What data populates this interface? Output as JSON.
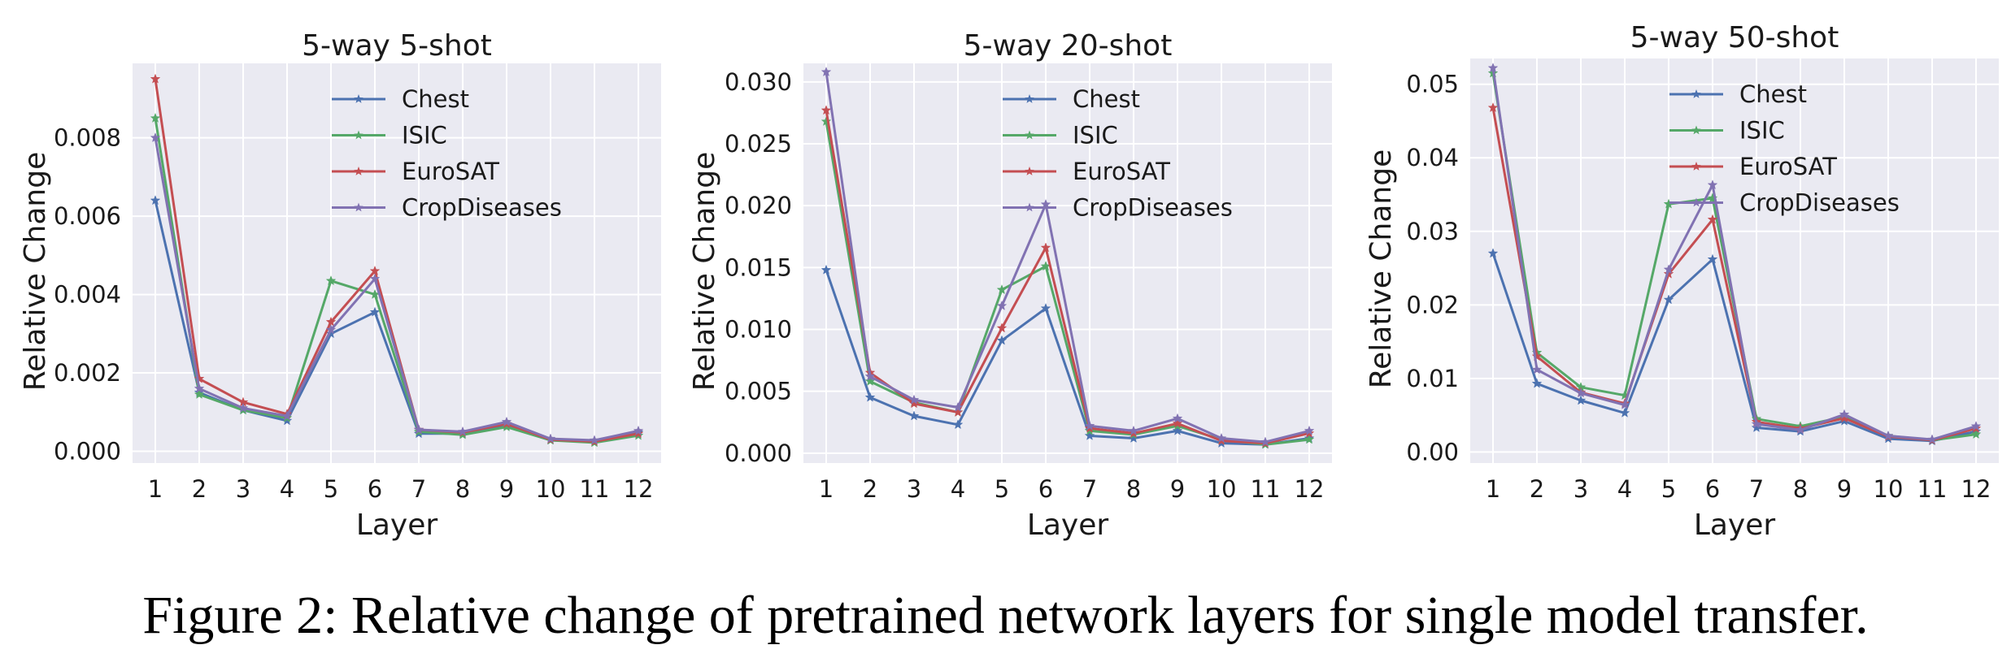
{
  "caption": "Figure 2: Relative change of pretrained network layers for single model transfer.",
  "colors": {
    "plot_background": "#eaeaf2",
    "grid": "#ffffff",
    "Chest": "#4c72b0",
    "ISIC": "#55a868",
    "EuroSAT": "#c44e52",
    "CropDiseases": "#8172b2"
  },
  "chart_data": [
    {
      "type": "line",
      "title": "5-way 5-shot",
      "xlabel": "Layer",
      "ylabel": "Relative Change",
      "x": [
        1,
        2,
        3,
        4,
        5,
        6,
        7,
        8,
        9,
        10,
        11,
        12
      ],
      "yticks": [
        "0.000",
        "0.002",
        "0.004",
        "0.006",
        "0.008"
      ],
      "ylim": [
        -0.0003,
        0.0099
      ],
      "grid": true,
      "legend": "top-right",
      "marker": "star",
      "series": [
        {
          "name": "Chest",
          "values": [
            0.0064,
            0.0015,
            0.00105,
            0.00078,
            0.003,
            0.00355,
            0.00045,
            0.00045,
            0.00065,
            0.00028,
            0.00025,
            0.00048
          ]
        },
        {
          "name": "ISIC",
          "values": [
            0.0085,
            0.00145,
            0.00105,
            0.00085,
            0.00435,
            0.004,
            0.0005,
            0.00042,
            0.00062,
            0.00028,
            0.00022,
            0.0004
          ]
        },
        {
          "name": "EuroSAT",
          "values": [
            0.0095,
            0.00185,
            0.00125,
            0.00095,
            0.0033,
            0.0046,
            0.00055,
            0.00048,
            0.0007,
            0.0003,
            0.00025,
            0.00045
          ]
        },
        {
          "name": "CropDiseases",
          "values": [
            0.008,
            0.0016,
            0.0011,
            0.0009,
            0.0031,
            0.0044,
            0.00055,
            0.0005,
            0.00075,
            0.00032,
            0.00028,
            0.00052
          ]
        }
      ]
    },
    {
      "type": "line",
      "title": "5-way 20-shot",
      "xlabel": "Layer",
      "ylabel": "Relative Change",
      "x": [
        1,
        2,
        3,
        4,
        5,
        6,
        7,
        8,
        9,
        10,
        11,
        12
      ],
      "yticks": [
        "0.000",
        "0.005",
        "0.010",
        "0.015",
        "0.020",
        "0.025",
        "0.030"
      ],
      "ylim": [
        -0.0008,
        0.0315
      ],
      "grid": true,
      "legend": "top-right",
      "marker": "star",
      "series": [
        {
          "name": "Chest",
          "values": [
            0.0148,
            0.0045,
            0.003,
            0.0023,
            0.0091,
            0.0117,
            0.0014,
            0.0012,
            0.0018,
            0.0008,
            0.0007,
            0.0012
          ]
        },
        {
          "name": "ISIC",
          "values": [
            0.0268,
            0.0058,
            0.0041,
            0.0033,
            0.0132,
            0.0151,
            0.0018,
            0.0015,
            0.0022,
            0.0011,
            0.0007,
            0.0011
          ]
        },
        {
          "name": "EuroSAT",
          "values": [
            0.0277,
            0.0065,
            0.004,
            0.0033,
            0.0101,
            0.0166,
            0.002,
            0.0016,
            0.0024,
            0.001,
            0.0008,
            0.0016
          ]
        },
        {
          "name": "CropDiseases",
          "values": [
            0.0308,
            0.0062,
            0.0043,
            0.0037,
            0.0119,
            0.0201,
            0.0022,
            0.0018,
            0.0028,
            0.0012,
            0.0009,
            0.0018
          ]
        }
      ]
    },
    {
      "type": "line",
      "title": "5-way 50-shot",
      "xlabel": "Layer",
      "ylabel": "Relative Change",
      "x": [
        1,
        2,
        3,
        4,
        5,
        6,
        7,
        8,
        9,
        10,
        11,
        12
      ],
      "yticks": [
        "0.00",
        "0.01",
        "0.02",
        "0.03",
        "0.04",
        "0.05"
      ],
      "ylim": [
        -0.0015,
        0.0535
      ],
      "grid": true,
      "legend": "top-right",
      "marker": "star",
      "series": [
        {
          "name": "Chest",
          "values": [
            0.027,
            0.0093,
            0.007,
            0.0053,
            0.0207,
            0.0262,
            0.0033,
            0.0028,
            0.0042,
            0.0018,
            0.0015,
            0.0028
          ]
        },
        {
          "name": "ISIC",
          "values": [
            0.0515,
            0.0135,
            0.0088,
            0.0077,
            0.0337,
            0.0345,
            0.0045,
            0.0035,
            0.0048,
            0.0022,
            0.0016,
            0.0024
          ]
        },
        {
          "name": "EuroSAT",
          "values": [
            0.0468,
            0.013,
            0.0081,
            0.0066,
            0.0242,
            0.0316,
            0.0041,
            0.0032,
            0.0046,
            0.0021,
            0.0016,
            0.0032
          ]
        },
        {
          "name": "CropDiseases",
          "values": [
            0.0522,
            0.0112,
            0.008,
            0.0064,
            0.0248,
            0.0363,
            0.0038,
            0.003,
            0.0051,
            0.0022,
            0.0017,
            0.0035
          ]
        }
      ]
    }
  ]
}
